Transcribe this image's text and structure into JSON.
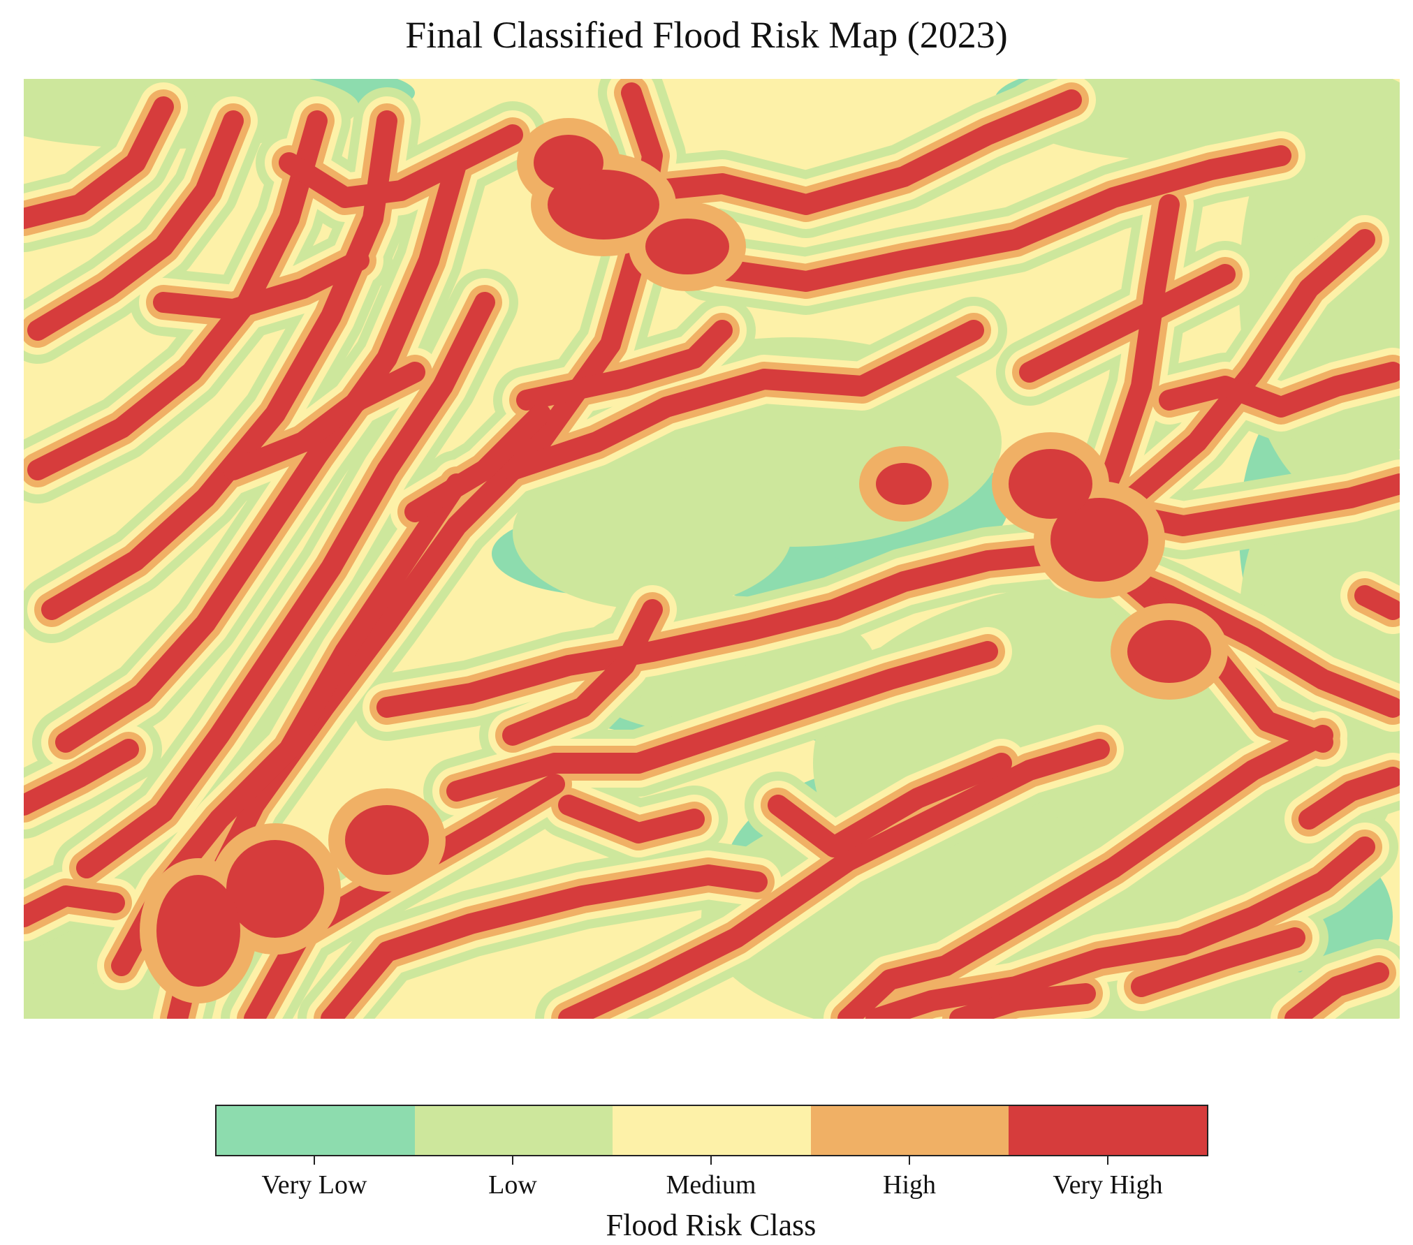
{
  "title": "Final Classified Flood Risk Map (2023)",
  "legend": {
    "title": "Flood Risk Class",
    "classes": [
      {
        "label": "Very Low",
        "color": "#8ddcae"
      },
      {
        "label": "Low",
        "color": "#cde79c"
      },
      {
        "label": "Medium",
        "color": "#fdf1a8"
      },
      {
        "label": "High",
        "color": "#f0b065"
      },
      {
        "label": "Very High",
        "color": "#d63c3c"
      }
    ]
  },
  "map": {
    "background_class": "Medium",
    "pattern": "dendritic drainage network; Very High channels buffered by High, Medium and Low bands; Very Low patches in interfluves, largest in the centre and south-east"
  }
}
